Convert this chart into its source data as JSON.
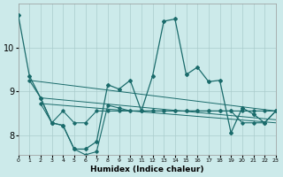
{
  "xlabel": "Humidex (Indice chaleur)",
  "bg_color": "#cceaea",
  "grid_color": "#aacccc",
  "line_color": "#1a6b6b",
  "xlim": [
    0,
    23
  ],
  "ylim": [
    7.55,
    11.0
  ],
  "yticks": [
    8,
    9,
    10
  ],
  "xticks": [
    0,
    1,
    2,
    3,
    4,
    5,
    6,
    7,
    8,
    9,
    10,
    11,
    12,
    13,
    14,
    15,
    16,
    17,
    18,
    19,
    20,
    21,
    22,
    23
  ],
  "series1_x": [
    0,
    1,
    2,
    3,
    4,
    5,
    6,
    7,
    8,
    9,
    10,
    11,
    12,
    13,
    14,
    15,
    16,
    17,
    18,
    19,
    20,
    21,
    22,
    23
  ],
  "series1_y": [
    10.75,
    9.35,
    8.85,
    8.28,
    8.22,
    7.68,
    7.68,
    7.85,
    9.15,
    9.05,
    9.25,
    8.55,
    9.35,
    10.6,
    10.65,
    9.38,
    9.55,
    9.22,
    9.25,
    8.05,
    8.62,
    8.48,
    8.28,
    8.55
  ],
  "series2_x": [
    1,
    2,
    3,
    4,
    5,
    6,
    7,
    8,
    9,
    10,
    11,
    12,
    13,
    14,
    15,
    16,
    17,
    18,
    19,
    20,
    21,
    22,
    23
  ],
  "series2_y": [
    9.25,
    8.85,
    8.28,
    8.55,
    8.28,
    8.28,
    8.55,
    8.55,
    8.55,
    8.55,
    8.55,
    8.55,
    8.55,
    8.55,
    8.55,
    8.55,
    8.55,
    8.55,
    8.55,
    8.55,
    8.55,
    8.55,
    8.55
  ],
  "series3_x": [
    2,
    3,
    4,
    5,
    6,
    7,
    8,
    9,
    10,
    11,
    12,
    13,
    14,
    15,
    16,
    17,
    18,
    19,
    20,
    21,
    22,
    23
  ],
  "series3_y": [
    8.72,
    8.28,
    8.22,
    7.68,
    7.55,
    7.62,
    8.68,
    8.62,
    8.55,
    8.55,
    8.55,
    8.55,
    8.55,
    8.55,
    8.55,
    8.55,
    8.55,
    8.55,
    8.28,
    8.28,
    8.28,
    8.55
  ],
  "trend1_x": [
    1,
    23
  ],
  "trend1_y": [
    9.25,
    8.55
  ],
  "trend2_x": [
    2,
    23
  ],
  "trend2_y": [
    8.85,
    8.35
  ]
}
